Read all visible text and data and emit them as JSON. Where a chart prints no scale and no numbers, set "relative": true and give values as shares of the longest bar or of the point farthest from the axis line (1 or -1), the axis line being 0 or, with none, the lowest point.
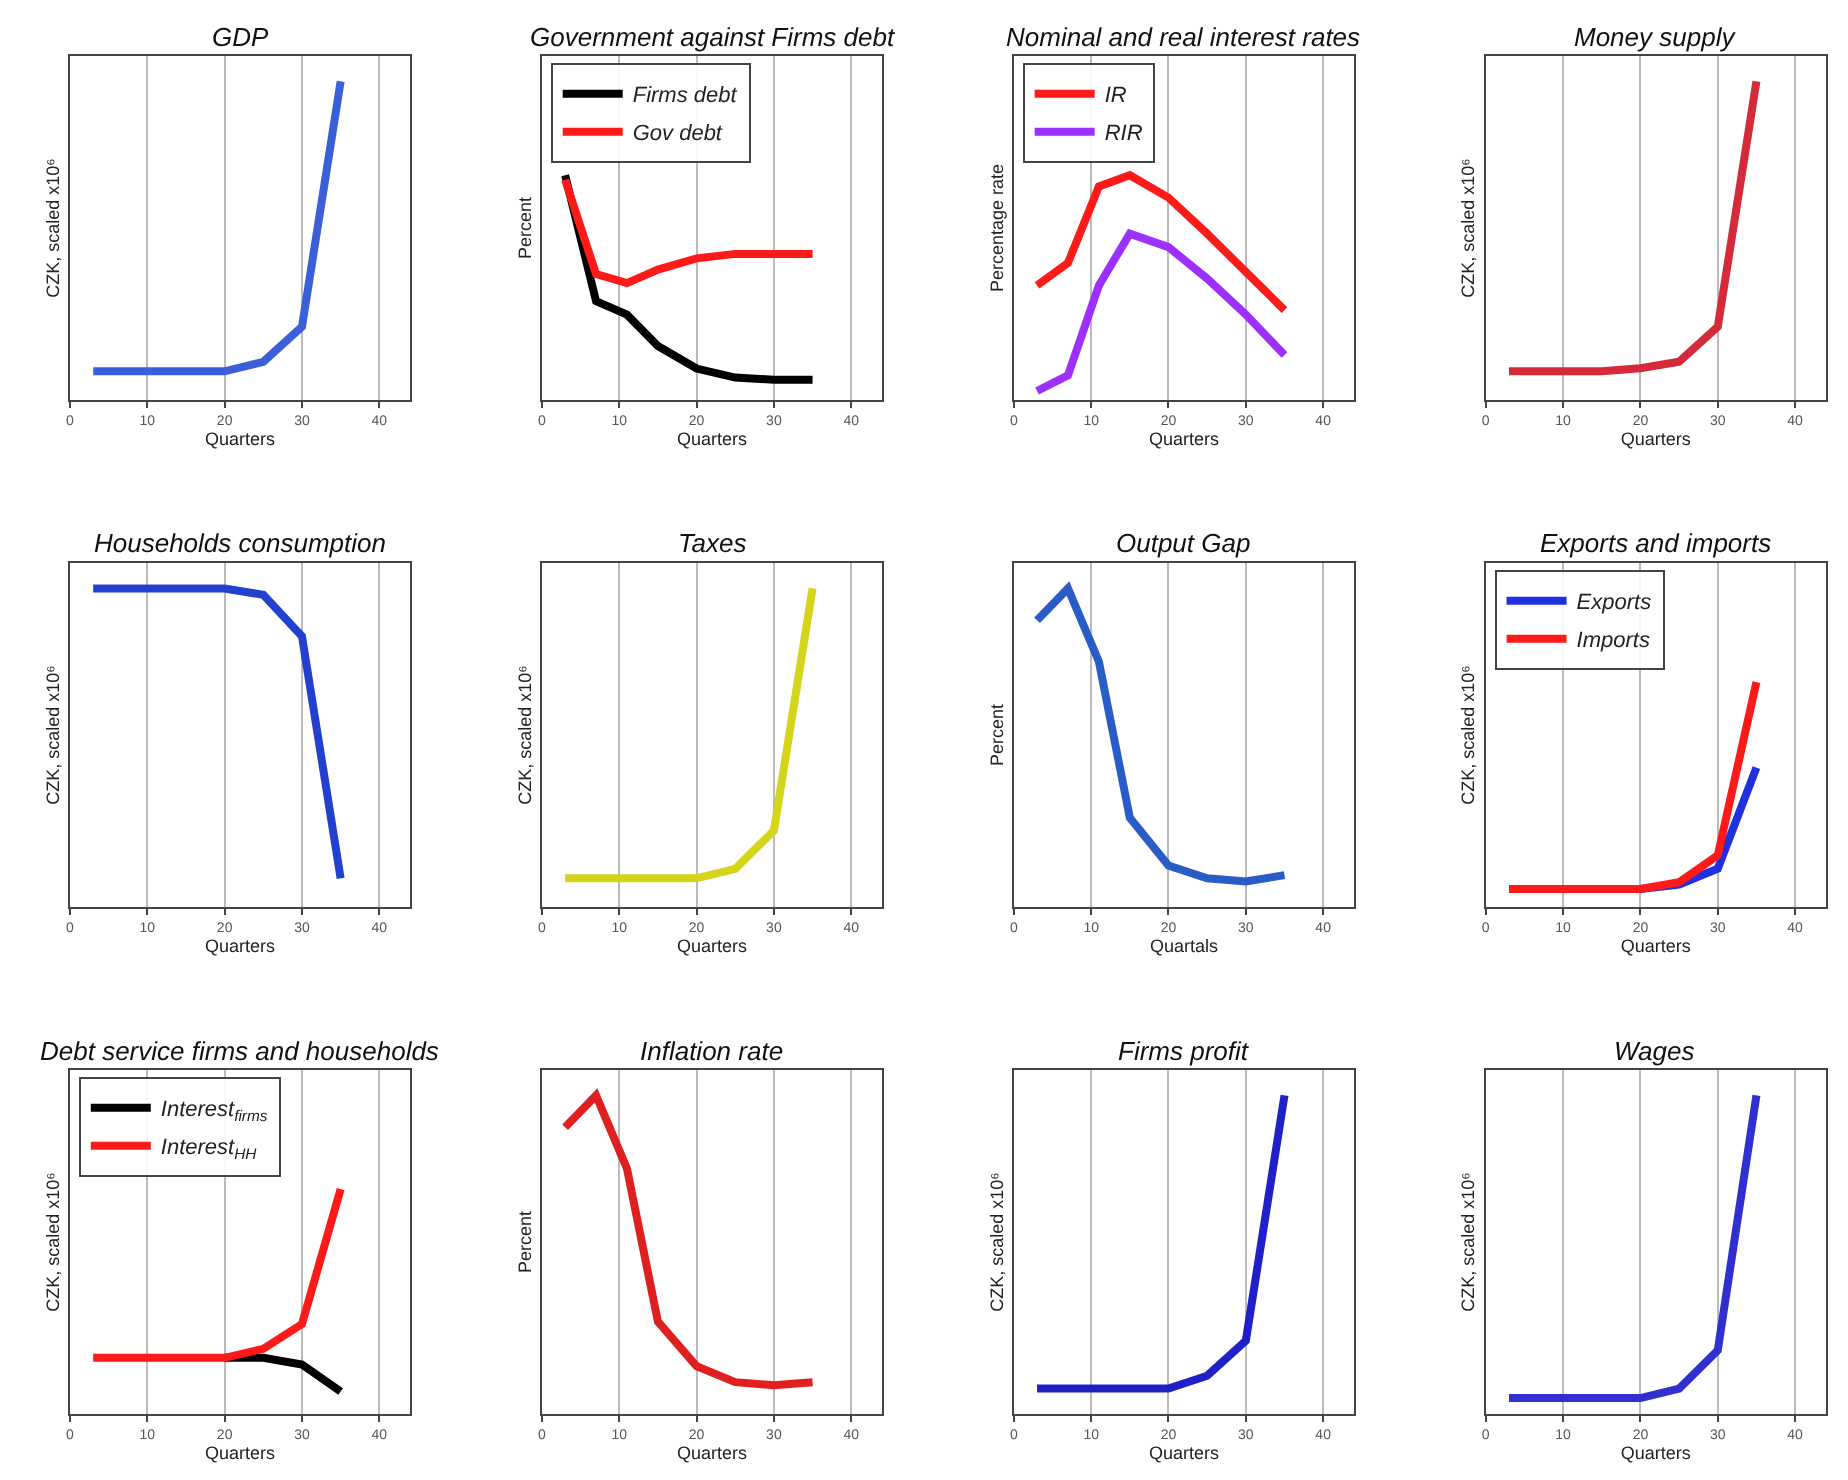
{
  "chart_data": [
    {
      "type": "line",
      "title": "GDP",
      "xlabel": "Quarters",
      "ylabel": "CZK, scaled x10⁶",
      "relative": true,
      "x": [
        3,
        7,
        11,
        15,
        20,
        25,
        30,
        35
      ],
      "xlim": [
        0,
        44
      ],
      "xticks": [
        0,
        10,
        20,
        30,
        40
      ],
      "grid": "x",
      "legend": false,
      "series": [
        {
          "color": "#3a5fd9",
          "values": [
            0.09,
            0.09,
            0.09,
            0.09,
            0.09,
            0.12,
            0.23,
            1.0
          ]
        }
      ]
    },
    {
      "type": "line",
      "title": "Government against Firms debt",
      "xlabel": "Quarters",
      "ylabel": "Percent",
      "relative": true,
      "x": [
        3,
        7,
        11,
        15,
        20,
        25,
        30,
        35
      ],
      "xlim": [
        0,
        44
      ],
      "xticks": [
        0,
        10,
        20,
        30,
        40
      ],
      "grid": "x",
      "legend": "top left",
      "series": [
        {
          "name": "Firms debt",
          "color": "#000000",
          "values": [
            1.0,
            0.44,
            0.38,
            0.24,
            0.14,
            0.1,
            0.09,
            0.09
          ]
        },
        {
          "name": "Gov debt",
          "color": "#ff1a1a",
          "values": [
            0.98,
            0.56,
            0.52,
            0.58,
            0.63,
            0.65,
            0.65,
            0.65
          ]
        }
      ]
    },
    {
      "type": "line",
      "title": "Nominal and real interest rates",
      "xlabel": "Quarters",
      "ylabel": "Percentage rate",
      "relative": true,
      "x": [
        3,
        7,
        11,
        15,
        20,
        25,
        30,
        35
      ],
      "xlim": [
        0,
        44
      ],
      "xticks": [
        0,
        10,
        20,
        30,
        40
      ],
      "grid": "x",
      "legend": "top left",
      "series": [
        {
          "name": "IR",
          "color": "#ff1a1a",
          "values": [
            0.51,
            0.61,
            0.95,
            1.0,
            0.9,
            0.74,
            0.57,
            0.4
          ]
        },
        {
          "name": "RIR",
          "color": "#9b30ff",
          "values": [
            0.04,
            0.11,
            0.51,
            0.74,
            0.68,
            0.54,
            0.38,
            0.2
          ]
        }
      ]
    },
    {
      "type": "line",
      "title": "Money supply",
      "xlabel": "Quarters",
      "ylabel": "CZK, scaled x10⁶",
      "relative": true,
      "x": [
        3,
        7,
        11,
        15,
        20,
        25,
        30,
        35
      ],
      "xlim": [
        0,
        44
      ],
      "xticks": [
        0,
        10,
        20,
        30,
        40
      ],
      "grid": "x",
      "legend": false,
      "series": [
        {
          "color": "#d42a3a",
          "values": [
            0.09,
            0.09,
            0.09,
            0.09,
            0.1,
            0.12,
            0.23,
            1.0
          ]
        }
      ]
    },
    {
      "type": "line",
      "title": "Households consumption",
      "xlabel": "Quarters",
      "ylabel": "CZK, scaled x10⁶",
      "relative": true,
      "x": [
        3,
        7,
        11,
        15,
        20,
        25,
        30,
        35
      ],
      "xlim": [
        0,
        44
      ],
      "xticks": [
        0,
        10,
        20,
        30,
        40
      ],
      "grid": "x",
      "legend": false,
      "series": [
        {
          "color": "#2440d0",
          "values": [
            1.0,
            1.0,
            1.0,
            1.0,
            1.0,
            0.98,
            0.85,
            0.09
          ]
        }
      ]
    },
    {
      "type": "line",
      "title": "Taxes",
      "xlabel": "Quarters",
      "ylabel": "CZK, scaled x10⁶",
      "relative": true,
      "x": [
        3,
        7,
        11,
        15,
        20,
        25,
        30,
        35
      ],
      "xlim": [
        0,
        44
      ],
      "xticks": [
        0,
        10,
        20,
        30,
        40
      ],
      "grid": "x",
      "legend": false,
      "series": [
        {
          "color": "#d4d41a",
          "values": [
            0.09,
            0.09,
            0.09,
            0.09,
            0.09,
            0.12,
            0.24,
            1.0
          ]
        }
      ]
    },
    {
      "type": "line",
      "title": "Output Gap",
      "xlabel": "Quartals",
      "ylabel": "Percent",
      "relative": true,
      "x": [
        3,
        7,
        11,
        15,
        20,
        25,
        30,
        35
      ],
      "xlim": [
        0,
        44
      ],
      "xticks": [
        0,
        10,
        20,
        30,
        40
      ],
      "grid": "x",
      "legend": false,
      "series": [
        {
          "color": "#2a5cc8",
          "values": [
            0.9,
            1.0,
            0.77,
            0.28,
            0.13,
            0.09,
            0.08,
            0.1
          ]
        }
      ]
    },
    {
      "type": "line",
      "title": "Exports and imports",
      "xlabel": "Quarters",
      "ylabel": "CZK, scaled x10⁶",
      "relative": true,
      "x": [
        3,
        7,
        11,
        15,
        20,
        25,
        30,
        35
      ],
      "xlim": [
        0,
        44
      ],
      "xticks": [
        0,
        10,
        20,
        30,
        40
      ],
      "grid": "x",
      "legend": "top left",
      "series": [
        {
          "name": "Exports",
          "color": "#2030e0",
          "values": [
            null,
            null,
            null,
            null,
            0.08,
            0.1,
            0.17,
            0.62
          ]
        },
        {
          "name": "Imports",
          "color": "#ff1a1a",
          "values": [
            0.08,
            0.08,
            0.08,
            0.08,
            0.08,
            0.11,
            0.23,
            1.0
          ]
        }
      ]
    },
    {
      "type": "line",
      "title": "Debt service firms and households",
      "xlabel": "Quarters",
      "ylabel": "CZK, scaled x10⁶",
      "relative": true,
      "x": [
        3,
        7,
        11,
        15,
        20,
        25,
        30,
        35
      ],
      "xlim": [
        0,
        44
      ],
      "xticks": [
        0,
        10,
        20,
        30,
        40
      ],
      "grid": "x",
      "legend": "top left",
      "series": [
        {
          "name": "Interest$_{firms}$",
          "color": "#000000",
          "values": [
            null,
            null,
            null,
            null,
            0.25,
            0.25,
            0.22,
            0.1
          ]
        },
        {
          "name": "Interest$_{HH}$",
          "color": "#ff1a1a",
          "values": [
            0.25,
            0.25,
            0.25,
            0.25,
            0.25,
            0.29,
            0.4,
            1.0
          ]
        }
      ]
    },
    {
      "type": "line",
      "title": "Inflation rate",
      "xlabel": "Quarters",
      "ylabel": "Percent",
      "relative": true,
      "x": [
        3,
        7,
        11,
        15,
        20,
        25,
        30,
        35
      ],
      "xlim": [
        0,
        44
      ],
      "xticks": [
        0,
        10,
        20,
        30,
        40
      ],
      "grid": "x",
      "legend": false,
      "series": [
        {
          "color": "#e02020",
          "values": [
            0.9,
            1.0,
            0.77,
            0.29,
            0.15,
            0.1,
            0.09,
            0.1
          ]
        }
      ]
    },
    {
      "type": "line",
      "title": "Firms profit",
      "xlabel": "Quarters",
      "ylabel": "CZK, scaled x10⁶",
      "relative": true,
      "x": [
        3,
        7,
        11,
        15,
        20,
        25,
        30,
        35
      ],
      "xlim": [
        0,
        44
      ],
      "xticks": [
        0,
        10,
        20,
        30,
        40
      ],
      "grid": "x",
      "legend": false,
      "series": [
        {
          "color": "#2020c8",
          "values": [
            0.08,
            0.08,
            0.08,
            0.08,
            0.08,
            0.12,
            0.23,
            1.0
          ]
        }
      ]
    },
    {
      "type": "line",
      "title": "Wages",
      "xlabel": "Quarters",
      "ylabel": "CZK, scaled x10⁶",
      "relative": true,
      "x": [
        3,
        7,
        11,
        15,
        20,
        25,
        30,
        35
      ],
      "xlim": [
        0,
        44
      ],
      "xticks": [
        0,
        10,
        20,
        30,
        40
      ],
      "grid": "x",
      "legend": false,
      "series": [
        {
          "color": "#3030d0",
          "values": [
            0.05,
            0.05,
            0.05,
            0.05,
            0.05,
            0.08,
            0.2,
            1.0
          ]
        }
      ]
    }
  ]
}
